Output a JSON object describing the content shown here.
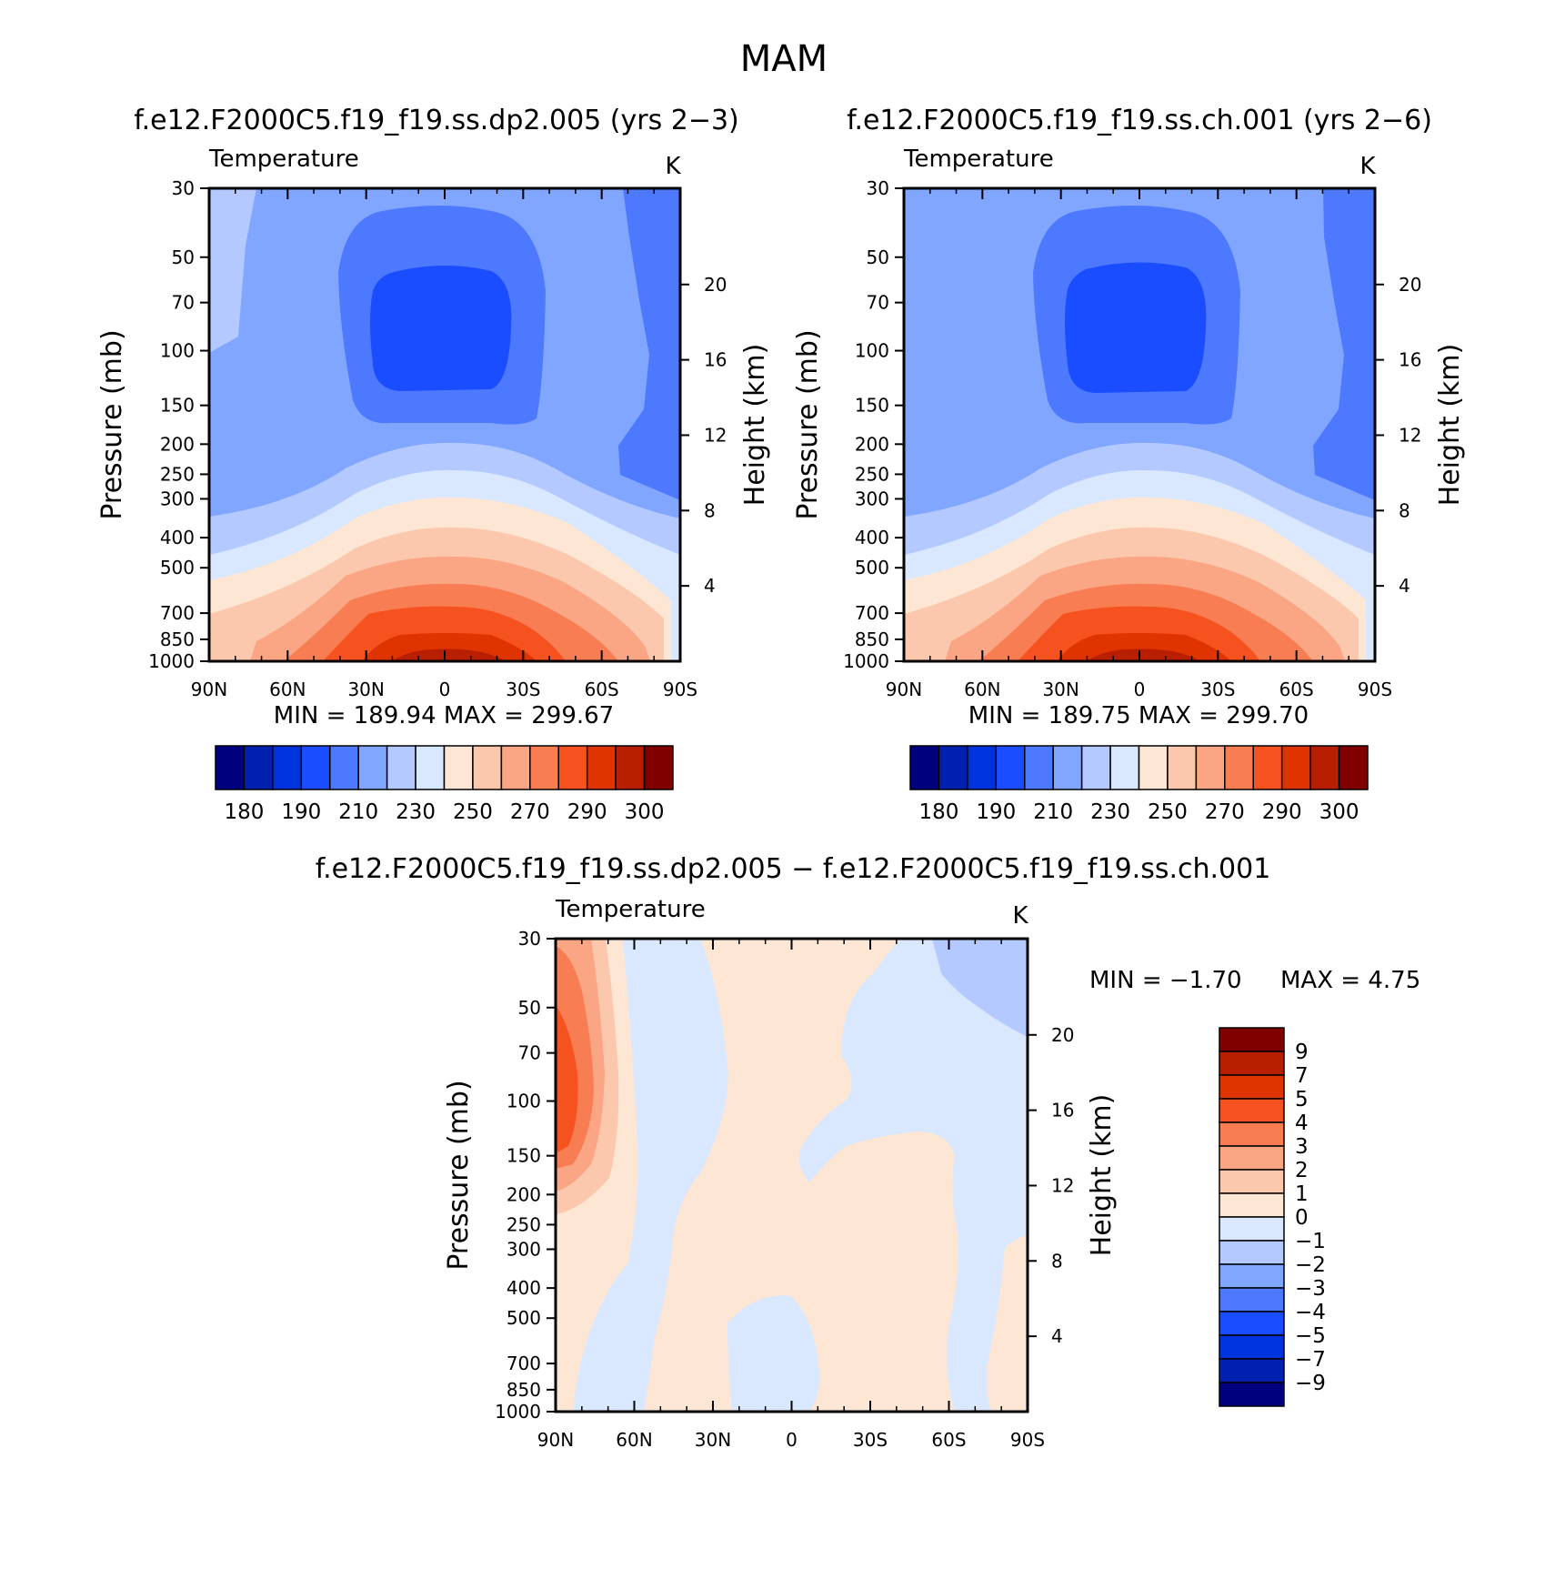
{
  "title": "MAM",
  "colors": {
    "abs_levels": [
      "#00007f",
      "#0020b0",
      "#0033e0",
      "#1a4dff",
      "#4d79ff",
      "#80a6ff",
      "#b3c9ff",
      "#d9e8ff",
      "#fde6d3",
      "#fcc8ad",
      "#faa583",
      "#f87d52",
      "#f5521f",
      "#df3300",
      "#b81f00",
      "#800000"
    ],
    "diff_levels": [
      "#00007f",
      "#0020b0",
      "#0033e0",
      "#1a4dff",
      "#4d79ff",
      "#80a6ff",
      "#b3c9ff",
      "#d9e8ff",
      "#fde6d3",
      "#fcc8ad",
      "#faa583",
      "#f87d52",
      "#f5521f",
      "#df3300",
      "#b81f00",
      "#800000"
    ]
  },
  "panels": [
    {
      "id": "p1",
      "case_title": "f.e12.F2000C5.f19_f19.ss.dp2.005 (yrs 2−3)",
      "var_label": "Temperature",
      "units": "K",
      "ylabel": "Pressure (mb)",
      "y2label": "Height (km)",
      "minmax": "MIN = 189.94 MAX = 299.67",
      "colorbar_labels": [
        "180",
        "190",
        "210",
        "230",
        "250",
        "270",
        "290",
        "300"
      ]
    },
    {
      "id": "p2",
      "case_title": "f.e12.F2000C5.f19_f19.ss.ch.001 (yrs 2−6)",
      "var_label": "Temperature",
      "units": "K",
      "ylabel": "Pressure (mb)",
      "y2label": "Height (km)",
      "minmax": "MIN = 189.75 MAX = 299.70",
      "colorbar_labels": [
        "180",
        "190",
        "210",
        "230",
        "250",
        "270",
        "290",
        "300"
      ]
    },
    {
      "id": "p3",
      "case_title": "f.e12.F2000C5.f19_f19.ss.dp2.005 − f.e12.F2000C5.f19_f19.ss.ch.001",
      "var_label": "Temperature",
      "units": "K",
      "ylabel": "Pressure (mb)",
      "y2label": "Height (km)",
      "min_text": "MIN = −1.70",
      "max_text": "MAX = 4.75",
      "colorbar_labels": [
        "9",
        "7",
        "5",
        "4",
        "3",
        "2",
        "1",
        "0",
        "−1",
        "−2",
        "−3",
        "−4",
        "−5",
        "−7",
        "−9"
      ]
    }
  ],
  "axes": {
    "x_ticks": [
      "90N",
      "60N",
      "30N",
      "0",
      "30S",
      "60S",
      "90S"
    ],
    "y_ticks": [
      "30",
      "50",
      "70",
      "100",
      "150",
      "200",
      "250",
      "300",
      "400",
      "500",
      "700",
      "850",
      "1000"
    ],
    "y2_ticks": [
      "20",
      "16",
      "12",
      "8",
      "4"
    ]
  },
  "chart_data": [
    {
      "type": "heatmap",
      "title": "f.e12.F2000C5.f19_f19.ss.dp2.005 (yrs 2−3)",
      "variable": "Temperature",
      "units": "K",
      "xlabel": "",
      "ylabel": "Pressure (mb)",
      "y2label": "Height (km)",
      "x_ticks": [
        "90N",
        "60N",
        "30N",
        "0",
        "30S",
        "60S",
        "90S"
      ],
      "y_ticks": [
        30,
        50,
        70,
        100,
        150,
        200,
        250,
        300,
        400,
        500,
        700,
        850,
        1000
      ],
      "y_scale": "log",
      "y_inverted": true,
      "y2_ticks": [
        20,
        16,
        12,
        8,
        4
      ],
      "min": 189.94,
      "max": 299.67,
      "contour_levels": [
        180,
        190,
        200,
        210,
        220,
        230,
        240,
        250,
        260,
        270,
        280,
        290,
        295,
        300
      ]
    },
    {
      "type": "heatmap",
      "title": "f.e12.F2000C5.f19_f19.ss.ch.001 (yrs 2−6)",
      "variable": "Temperature",
      "units": "K",
      "xlabel": "",
      "ylabel": "Pressure (mb)",
      "y2label": "Height (km)",
      "x_ticks": [
        "90N",
        "60N",
        "30N",
        "0",
        "30S",
        "60S",
        "90S"
      ],
      "y_ticks": [
        30,
        50,
        70,
        100,
        150,
        200,
        250,
        300,
        400,
        500,
        700,
        850,
        1000
      ],
      "y_scale": "log",
      "y_inverted": true,
      "y2_ticks": [
        20,
        16,
        12,
        8,
        4
      ],
      "min": 189.75,
      "max": 299.7,
      "contour_levels": [
        180,
        190,
        200,
        210,
        220,
        230,
        240,
        250,
        260,
        270,
        280,
        290,
        295,
        300
      ]
    },
    {
      "type": "heatmap",
      "title": "f.e12.F2000C5.f19_f19.ss.dp2.005 − f.e12.F2000C5.f19_f19.ss.ch.001",
      "variable": "Temperature",
      "units": "K",
      "xlabel": "",
      "ylabel": "Pressure (mb)",
      "y2label": "Height (km)",
      "x_ticks": [
        "90N",
        "60N",
        "30N",
        "0",
        "30S",
        "60S",
        "90S"
      ],
      "y_ticks": [
        30,
        50,
        70,
        100,
        150,
        200,
        250,
        300,
        400,
        500,
        700,
        850,
        1000
      ],
      "y_scale": "log",
      "y_inverted": true,
      "y2_ticks": [
        20,
        16,
        12,
        8,
        4
      ],
      "min": -1.7,
      "max": 4.75,
      "contour_levels": [
        -9,
        -7,
        -5,
        -4,
        -3,
        -2,
        -1,
        0,
        1,
        2,
        3,
        4,
        5,
        7,
        9
      ]
    }
  ]
}
